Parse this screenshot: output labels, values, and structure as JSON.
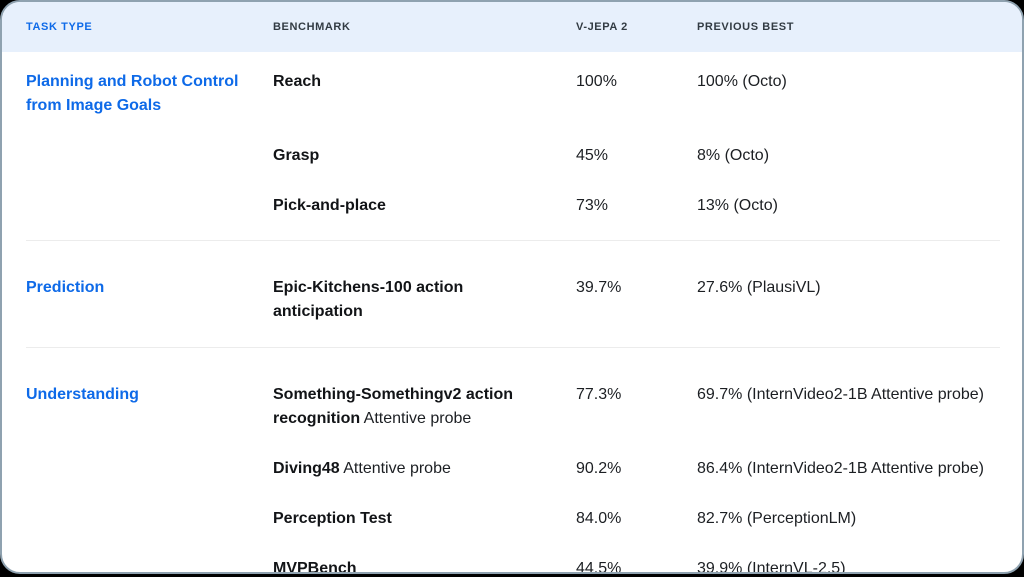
{
  "colors": {
    "page_background": "#000000",
    "card_background": "#ffffff",
    "card_border": "#8fa2b0",
    "header_background": "#e7f0fc",
    "accent_blue": "#0e6ae8",
    "header_text": "#323b43",
    "body_text": "#1c1f23",
    "divider": "#ececec"
  },
  "table": {
    "columns": [
      "TASK TYPE",
      "BENCHMARK",
      "V-JEPA 2",
      "PREVIOUS BEST"
    ],
    "sections": [
      {
        "task_type": "Planning and Robot Control from Image Goals",
        "rows": [
          {
            "benchmark_bold": "Reach",
            "vjepa2": "100%",
            "previous_best": "100% (Octo)"
          },
          {
            "benchmark_bold": "Grasp",
            "vjepa2": "45%",
            "previous_best": "8% (Octo)"
          },
          {
            "benchmark_bold": "Pick-and-place",
            "vjepa2": "73%",
            "previous_best": "13% (Octo)"
          }
        ]
      },
      {
        "task_type": "Prediction",
        "rows": [
          {
            "benchmark_bold": "Epic-Kitchens-100 action anticipation",
            "vjepa2": "39.7%",
            "previous_best": "27.6% (PlausiVL)"
          }
        ]
      },
      {
        "task_type": "Understanding",
        "rows": [
          {
            "benchmark_bold": "Something-Somethingv2 action recognition",
            "benchmark_regular": " Attentive probe",
            "vjepa2": "77.3%",
            "previous_best": "69.7% (InternVideo2-1B Attentive probe)"
          },
          {
            "benchmark_bold": "Diving48",
            "benchmark_regular": " Attentive probe",
            "vjepa2": "90.2%",
            "previous_best": "86.4% (InternVideo2-1B Attentive probe)"
          },
          {
            "benchmark_bold": "Perception Test",
            "vjepa2": "84.0%",
            "previous_best": "82.7% (PerceptionLM)"
          },
          {
            "benchmark_bold": "MVPBench",
            "vjepa2": "44.5%",
            "previous_best": "39.9% (InternVL-2.5)"
          }
        ]
      }
    ]
  }
}
